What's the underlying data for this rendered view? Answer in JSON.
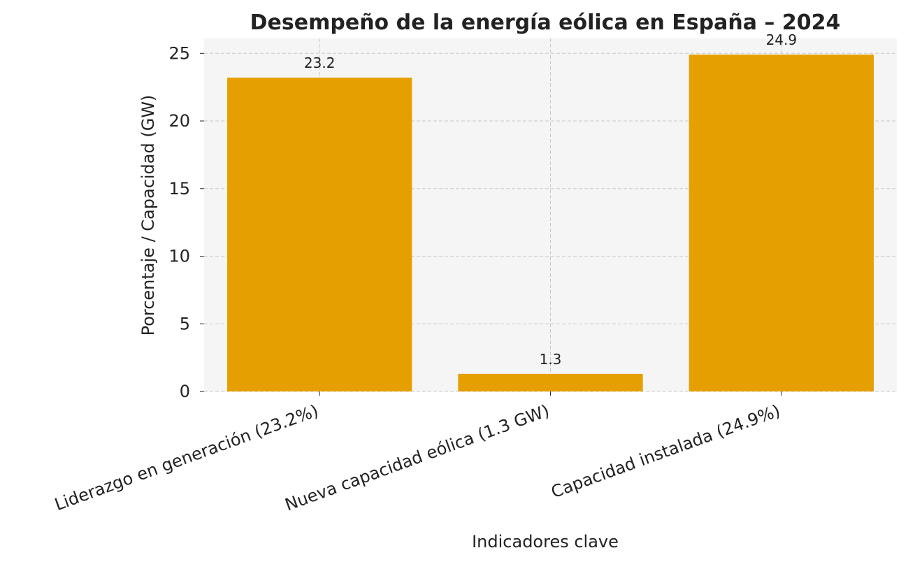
{
  "chart_data": {
    "type": "bar",
    "title": "Desempeño de la energía eólica en España – 2024",
    "x_label": "Indicadores clave",
    "y_label": "Porcentaje / Capacidad (GW)",
    "categories": [
      "Liderazgo en generación (23.2%)",
      "Nueva capacidad eólica (1.3 GW)",
      "Capacidad instalada (24.9%)"
    ],
    "values": [
      23.2,
      1.3,
      24.9
    ],
    "color": "#e69f00",
    "ylim": [
      0,
      26.1
    ],
    "yticks": [
      0,
      5,
      10,
      15,
      20,
      25
    ],
    "grid": true
  }
}
